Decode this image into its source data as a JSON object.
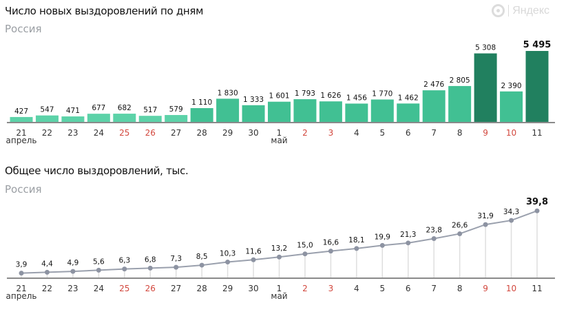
{
  "logo": {
    "text": "Яндекс",
    "icon": "yandex-ring-icon"
  },
  "colors": {
    "bar_light": "#5cd2a8",
    "bar_mid": "#41c093",
    "bar_dark": "#21805f",
    "weekend": "#d2473d",
    "line": "#9aa0ad",
    "point": "#8d93a2",
    "axis": "#8a8a8a",
    "stem": "#dedede"
  },
  "chart_data": [
    {
      "type": "bar",
      "title": "Число новых выздоровлений по дням",
      "subtitle": "Россия",
      "categories": [
        "21",
        "22",
        "23",
        "24",
        "25",
        "26",
        "27",
        "28",
        "29",
        "30",
        "1",
        "2",
        "3",
        "4",
        "5",
        "6",
        "7",
        "8",
        "9",
        "10",
        "11"
      ],
      "month_labels": [
        {
          "index": 0,
          "label": "апрель"
        },
        {
          "index": 10,
          "label": "май"
        }
      ],
      "weekend_indices": [
        4,
        5,
        11,
        12,
        18,
        19
      ],
      "values": [
        427,
        547,
        471,
        677,
        682,
        517,
        579,
        1110,
        1830,
        1333,
        1601,
        1793,
        1626,
        1456,
        1770,
        1462,
        2476,
        2805,
        5308,
        2390,
        5495
      ],
      "value_labels": [
        "427",
        "547",
        "471",
        "677",
        "682",
        "517",
        "579",
        "1 110",
        "1 830",
        "1 333",
        "1 601",
        "1 793",
        "1 626",
        "1 456",
        "1 770",
        "1 462",
        "2 476",
        "2 805",
        "5 308",
        "2 390",
        "5 495"
      ],
      "highlight_index": 20,
      "ylim": [
        0,
        5495
      ]
    },
    {
      "type": "line",
      "title": "Общее число выздоровлений, тыс.",
      "subtitle": "Россия",
      "categories": [
        "21",
        "22",
        "23",
        "24",
        "25",
        "26",
        "27",
        "28",
        "29",
        "30",
        "1",
        "2",
        "3",
        "4",
        "5",
        "6",
        "7",
        "8",
        "9",
        "10",
        "11"
      ],
      "month_labels": [
        {
          "index": 0,
          "label": "апрель"
        },
        {
          "index": 10,
          "label": "май"
        }
      ],
      "weekend_indices": [
        4,
        5,
        11,
        12,
        18,
        19
      ],
      "values": [
        3.9,
        4.4,
        4.9,
        5.6,
        6.3,
        6.8,
        7.3,
        8.5,
        10.3,
        11.6,
        13.2,
        15.0,
        16.6,
        18.1,
        19.9,
        21.3,
        23.8,
        26.6,
        31.9,
        34.3,
        39.8
      ],
      "value_labels": [
        "3,9",
        "4,4",
        "4,9",
        "5,6",
        "6,3",
        "6,8",
        "7,3",
        "8,5",
        "10,3",
        "11,6",
        "13,2",
        "15,0",
        "16,6",
        "18,1",
        "19,9",
        "21,3",
        "23,8",
        "26,6",
        "31,9",
        "34,3",
        "39,8"
      ],
      "highlight_index": 20,
      "ylim": [
        0,
        40
      ]
    }
  ]
}
